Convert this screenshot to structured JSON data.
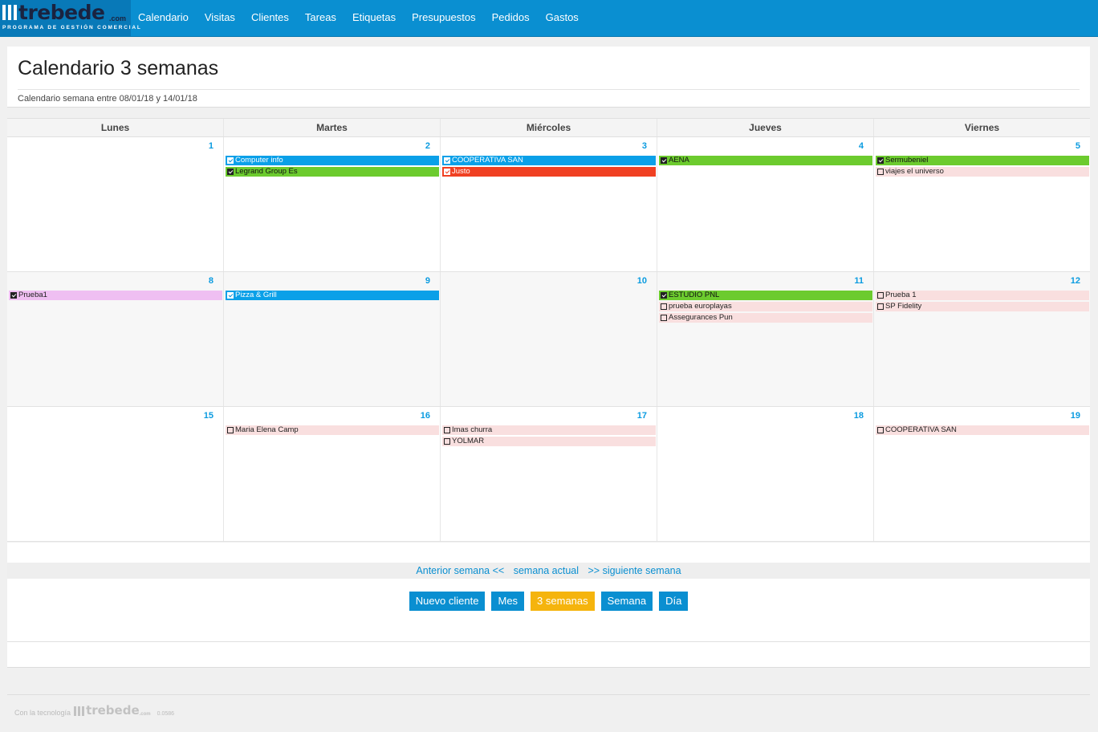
{
  "brand": {
    "wordmark": "trebede",
    "suffix": ".com",
    "tagline": "PROGRAMA DE GESTIÓN COMERCIAL"
  },
  "nav": [
    {
      "label": "Calendario"
    },
    {
      "label": "Visitas"
    },
    {
      "label": "Clientes"
    },
    {
      "label": "Tareas"
    },
    {
      "label": "Etiquetas"
    },
    {
      "label": "Presupuestos"
    },
    {
      "label": "Pedidos"
    },
    {
      "label": "Gastos"
    }
  ],
  "header": {
    "title": "Calendario 3 semanas",
    "subtitle": "Calendario semana entre 08/01/18 y 14/01/18"
  },
  "calendar": {
    "day_names": [
      "Lunes",
      "Martes",
      "Miércoles",
      "Jueves",
      "Viernes"
    ],
    "weeks": [
      {
        "days": [
          {
            "num": "1",
            "events": []
          },
          {
            "num": "2",
            "events": [
              {
                "label": "Computer info",
                "color": "blue",
                "checked": true
              },
              {
                "label": "Legrand Group Es",
                "color": "green",
                "checked": true
              }
            ]
          },
          {
            "num": "3",
            "events": [
              {
                "label": "COOPERATIVA SAN",
                "color": "blue",
                "checked": true
              },
              {
                "label": "Justo",
                "color": "red",
                "checked": true
              }
            ]
          },
          {
            "num": "4",
            "events": [
              {
                "label": "AENA",
                "color": "green",
                "checked": true
              }
            ]
          },
          {
            "num": "5",
            "events": [
              {
                "label": "Sermubeniel",
                "color": "green",
                "checked": true
              },
              {
                "label": "viajes el universo",
                "color": "pink",
                "checked": false
              }
            ]
          }
        ]
      },
      {
        "days": [
          {
            "num": "8",
            "events": [
              {
                "label": "Prueba1",
                "color": "violet",
                "checked": true
              }
            ]
          },
          {
            "num": "9",
            "events": [
              {
                "label": "Pizza & Grill",
                "color": "blue",
                "checked": true
              }
            ]
          },
          {
            "num": "10",
            "events": []
          },
          {
            "num": "11",
            "events": [
              {
                "label": "ESTUDIO PNL",
                "color": "green",
                "checked": true
              },
              {
                "label": "prueba europlayas",
                "color": "pink",
                "checked": false
              },
              {
                "label": "Assegurances Pun",
                "color": "pink",
                "checked": false
              }
            ]
          },
          {
            "num": "12",
            "events": [
              {
                "label": "Prueba 1",
                "color": "pink",
                "checked": false
              },
              {
                "label": "SP Fidelity",
                "color": "pink",
                "checked": false
              }
            ]
          }
        ]
      },
      {
        "days": [
          {
            "num": "15",
            "events": []
          },
          {
            "num": "16",
            "events": [
              {
                "label": "Maria Elena Camp",
                "color": "pink",
                "checked": false
              }
            ]
          },
          {
            "num": "17",
            "events": [
              {
                "label": "Imas churra",
                "color": "pink",
                "checked": false
              },
              {
                "label": "YOLMAR",
                "color": "pink",
                "checked": false
              }
            ]
          },
          {
            "num": "18",
            "events": []
          },
          {
            "num": "19",
            "events": [
              {
                "label": "COOPERATIVA SAN",
                "color": "pink",
                "checked": false
              }
            ]
          }
        ]
      }
    ]
  },
  "week_nav": {
    "prev": "Anterior semana <<",
    "current": "semana actual",
    "next": ">> siguiente semana"
  },
  "buttons": [
    {
      "label": "Nuevo cliente",
      "active": false
    },
    {
      "label": "Mes",
      "active": false
    },
    {
      "label": "3 semanas",
      "active": true
    },
    {
      "label": "Semana",
      "active": false
    },
    {
      "label": "Día",
      "active": false
    }
  ],
  "footer": {
    "text": "Con la tecnología",
    "wordmark": "trebede",
    "suffix": ".com",
    "version": "0.0586"
  },
  "colors": {
    "primary": "#0a8fd1",
    "accent": "#f5b40d",
    "event_blue": "#0aa0e8",
    "event_green": "#6ccb2e",
    "event_red": "#f04022",
    "event_pink": "#f9dfdf",
    "event_violet": "#efbff2"
  }
}
